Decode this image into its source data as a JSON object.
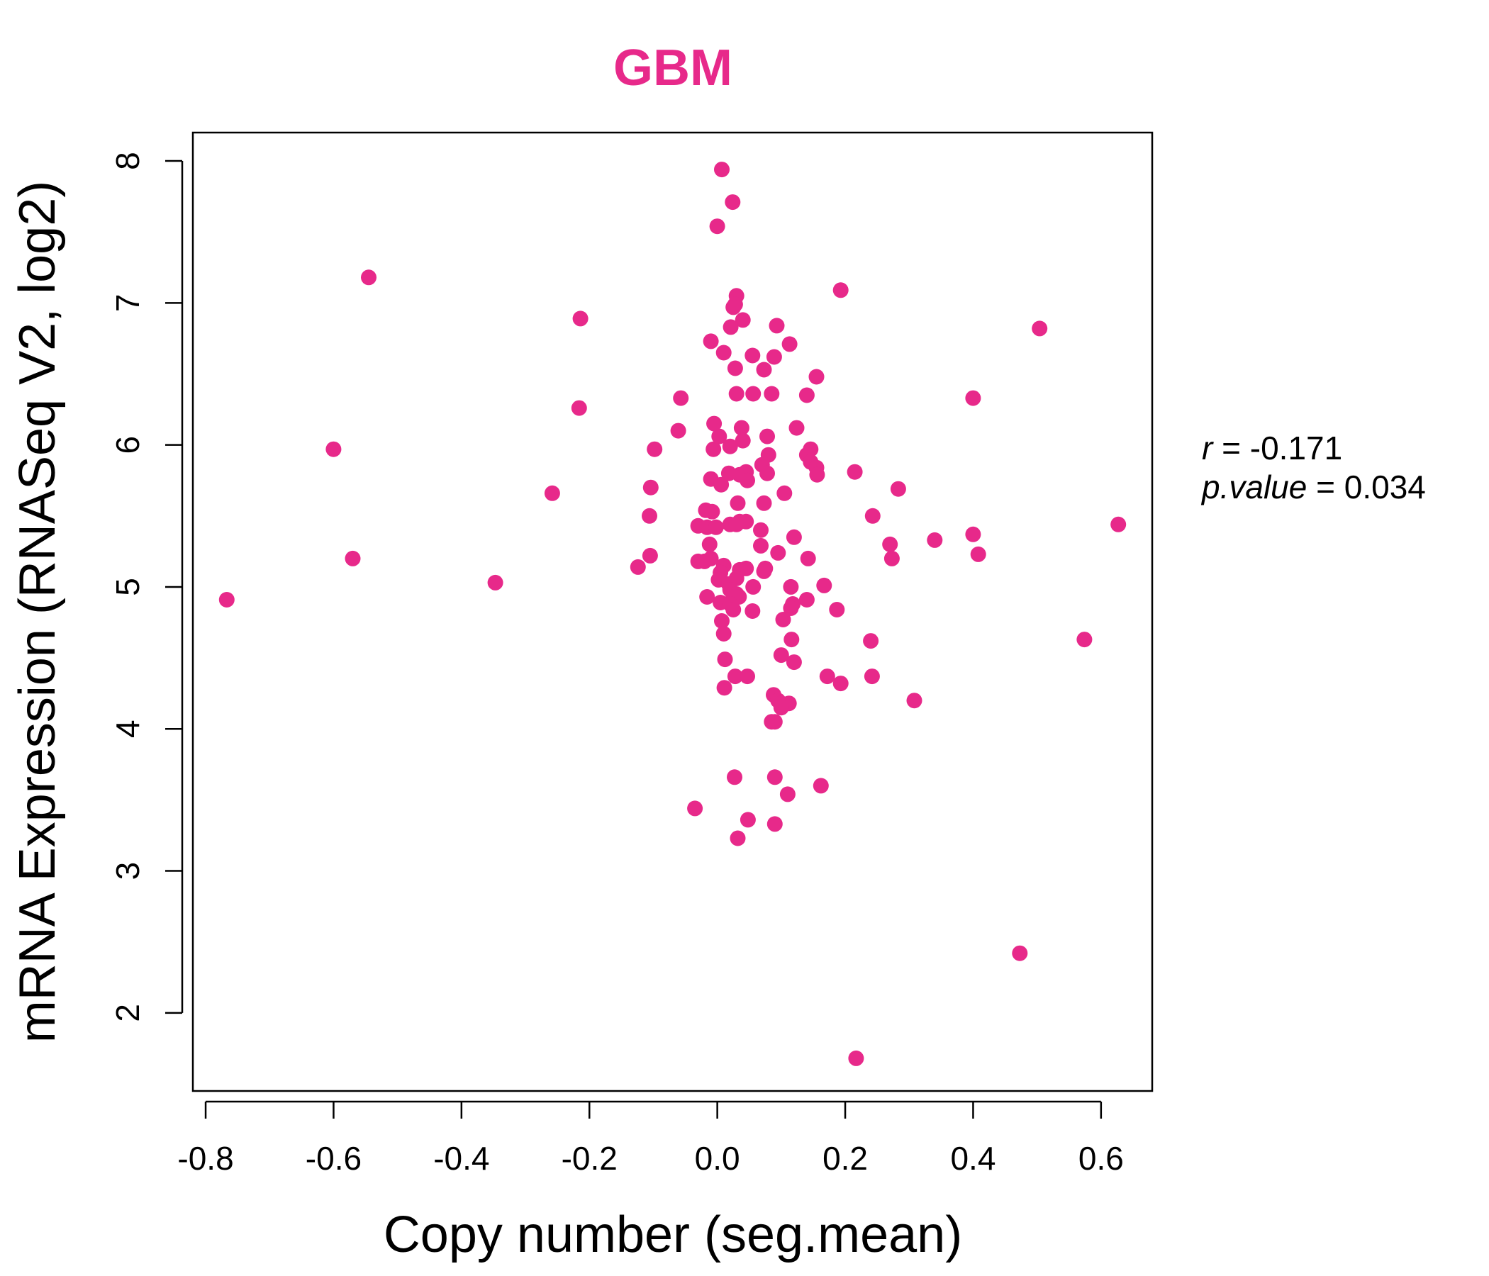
{
  "chart_data": {
    "type": "scatter",
    "title": "GBM",
    "xlabel": "Copy number (seg.mean)",
    "ylabel": "mRNA Expression (RNASeq V2, log2)",
    "xlim": [
      -0.82,
      0.68
    ],
    "ylim": [
      1.45,
      8.2
    ],
    "x_ticks": [
      -0.8,
      -0.6,
      -0.4,
      -0.2,
      0.0,
      0.2,
      0.4,
      0.6
    ],
    "x_tick_labels": [
      "-0.8",
      "-0.6",
      "-0.4",
      "-0.2",
      "0.0",
      "0.2",
      "0.4",
      "0.6"
    ],
    "y_ticks": [
      2,
      3,
      4,
      5,
      6,
      7,
      8
    ],
    "y_tick_labels": [
      "2",
      "3",
      "4",
      "5",
      "6",
      "7",
      "8"
    ],
    "grid": false,
    "legend": "none",
    "point_color": "#e7298a",
    "stats": {
      "r_label": "r",
      "r_value": "-0.171",
      "p_label": "p.value",
      "p_value": "0.034"
    },
    "points": [
      [
        0.007,
        7.94
      ],
      [
        0.024,
        7.71
      ],
      [
        0.0,
        7.54
      ],
      [
        -0.545,
        7.18
      ],
      [
        0.193,
        7.09
      ],
      [
        0.03,
        7.05
      ],
      [
        0.028,
        6.99
      ],
      [
        0.025,
        6.97
      ],
      [
        -0.214,
        6.89
      ],
      [
        0.04,
        6.88
      ],
      [
        0.093,
        6.84
      ],
      [
        0.021,
        6.83
      ],
      [
        0.504,
        6.82
      ],
      [
        -0.01,
        6.73
      ],
      [
        0.113,
        6.71
      ],
      [
        0.01,
        6.65
      ],
      [
        0.055,
        6.63
      ],
      [
        0.089,
        6.62
      ],
      [
        0.028,
        6.54
      ],
      [
        0.073,
        6.53
      ],
      [
        0.155,
        6.48
      ],
      [
        0.03,
        6.36
      ],
      [
        0.056,
        6.36
      ],
      [
        0.085,
        6.36
      ],
      [
        0.14,
        6.35
      ],
      [
        -0.057,
        6.33
      ],
      [
        0.4,
        6.33
      ],
      [
        -0.216,
        6.26
      ],
      [
        -0.005,
        6.15
      ],
      [
        0.038,
        6.12
      ],
      [
        0.124,
        6.12
      ],
      [
        -0.061,
        6.1
      ],
      [
        0.003,
        6.06
      ],
      [
        0.078,
        6.06
      ],
      [
        0.04,
        6.03
      ],
      [
        0.02,
        5.99
      ],
      [
        -0.6,
        5.97
      ],
      [
        -0.098,
        5.97
      ],
      [
        -0.006,
        5.97
      ],
      [
        0.146,
        5.97
      ],
      [
        0.08,
        5.93
      ],
      [
        0.14,
        5.93
      ],
      [
        0.146,
        5.88
      ],
      [
        0.07,
        5.86
      ],
      [
        0.155,
        5.84
      ],
      [
        0.045,
        5.81
      ],
      [
        0.215,
        5.81
      ],
      [
        0.018,
        5.8
      ],
      [
        0.078,
        5.8
      ],
      [
        0.035,
        5.79
      ],
      [
        0.156,
        5.79
      ],
      [
        -0.01,
        5.76
      ],
      [
        0.047,
        5.75
      ],
      [
        0.006,
        5.72
      ],
      [
        -0.104,
        5.7
      ],
      [
        0.283,
        5.69
      ],
      [
        -0.258,
        5.66
      ],
      [
        0.105,
        5.66
      ],
      [
        0.032,
        5.59
      ],
      [
        0.073,
        5.59
      ],
      [
        -0.018,
        5.54
      ],
      [
        -0.008,
        5.53
      ],
      [
        -0.106,
        5.5
      ],
      [
        0.243,
        5.5
      ],
      [
        0.035,
        5.46
      ],
      [
        0.045,
        5.46
      ],
      [
        0.627,
        5.44
      ],
      [
        0.02,
        5.44
      ],
      [
        0.03,
        5.44
      ],
      [
        -0.03,
        5.43
      ],
      [
        -0.016,
        5.42
      ],
      [
        -0.002,
        5.42
      ],
      [
        0.068,
        5.4
      ],
      [
        0.4,
        5.37
      ],
      [
        0.12,
        5.35
      ],
      [
        0.34,
        5.33
      ],
      [
        -0.012,
        5.3
      ],
      [
        0.068,
        5.29
      ],
      [
        0.27,
        5.3
      ],
      [
        0.095,
        5.24
      ],
      [
        0.408,
        5.23
      ],
      [
        -0.105,
        5.22
      ],
      [
        -0.57,
        5.2
      ],
      [
        0.142,
        5.2
      ],
      [
        0.273,
        5.2
      ],
      [
        -0.03,
        5.18
      ],
      [
        -0.02,
        5.18
      ],
      [
        -0.01,
        5.2
      ],
      [
        0.01,
        5.15
      ],
      [
        0.045,
        5.13
      ],
      [
        0.075,
        5.13
      ],
      [
        0.035,
        5.12
      ],
      [
        0.073,
        5.11
      ],
      [
        -0.124,
        5.14
      ],
      [
        0.005,
        5.1
      ],
      [
        -0.347,
        5.03
      ],
      [
        0.002,
        5.05
      ],
      [
        0.03,
        5.06
      ],
      [
        0.018,
        5.02
      ],
      [
        0.167,
        5.01
      ],
      [
        0.056,
        5.0
      ],
      [
        0.115,
        5.0
      ],
      [
        0.02,
        4.98
      ],
      [
        0.03,
        4.95
      ],
      [
        -0.016,
        4.93
      ],
      [
        0.034,
        4.93
      ],
      [
        0.025,
        4.93
      ],
      [
        -0.767,
        4.91
      ],
      [
        0.14,
        4.91
      ],
      [
        0.005,
        4.89
      ],
      [
        0.02,
        4.88
      ],
      [
        0.118,
        4.88
      ],
      [
        0.115,
        4.85
      ],
      [
        0.187,
        4.84
      ],
      [
        0.055,
        4.83
      ],
      [
        0.025,
        4.84
      ],
      [
        0.103,
        4.77
      ],
      [
        0.007,
        4.76
      ],
      [
        0.01,
        4.67
      ],
      [
        0.116,
        4.63
      ],
      [
        0.24,
        4.62
      ],
      [
        0.574,
        4.63
      ],
      [
        0.1,
        4.52
      ],
      [
        0.12,
        4.47
      ],
      [
        0.012,
        4.49
      ],
      [
        0.028,
        4.37
      ],
      [
        0.047,
        4.37
      ],
      [
        0.172,
        4.37
      ],
      [
        0.242,
        4.37
      ],
      [
        0.193,
        4.32
      ],
      [
        0.011,
        4.29
      ],
      [
        0.088,
        4.24
      ],
      [
        0.095,
        4.2
      ],
      [
        0.1,
        4.18
      ],
      [
        0.112,
        4.18
      ],
      [
        0.308,
        4.2
      ],
      [
        0.1,
        4.15
      ],
      [
        0.085,
        4.05
      ],
      [
        0.09,
        4.05
      ],
      [
        0.027,
        3.66
      ],
      [
        0.09,
        3.66
      ],
      [
        0.162,
        3.6
      ],
      [
        0.11,
        3.54
      ],
      [
        -0.035,
        3.44
      ],
      [
        0.048,
        3.36
      ],
      [
        0.09,
        3.33
      ],
      [
        0.032,
        3.23
      ],
      [
        0.473,
        2.42
      ],
      [
        0.217,
        1.68
      ]
    ]
  }
}
